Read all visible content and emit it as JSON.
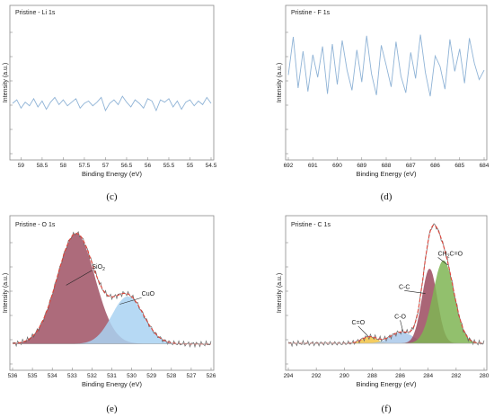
{
  "chart_data": [
    {
      "type": "line",
      "panel_label": "Pristine - Li 1s",
      "subfigure_label": "(c)",
      "xlabel": "Binding Energy (eV)",
      "ylabel": "Intensity (a.u.)",
      "xlim": [
        59.2,
        54.5
      ],
      "x_reversed": true,
      "ylim": [
        0,
        10
      ],
      "x_ticks": [
        "59",
        "58.5",
        "58",
        "57.5",
        "57",
        "56.5",
        "56",
        "55.5",
        "55",
        "54.5"
      ],
      "x_tick_values": [
        59,
        58.5,
        58,
        57.5,
        57,
        56.5,
        56,
        55.5,
        55,
        54.5
      ],
      "series": [
        {
          "color": "#8fb3d6",
          "x": [
            59.2,
            59.1,
            59.0,
            58.9,
            58.8,
            58.7,
            58.6,
            58.5,
            58.4,
            58.3,
            58.2,
            58.1,
            58.0,
            57.9,
            57.8,
            57.7,
            57.6,
            57.5,
            57.4,
            57.3,
            57.2,
            57.1,
            57.0,
            56.9,
            56.8,
            56.7,
            56.6,
            56.5,
            56.4,
            56.3,
            56.2,
            56.1,
            56.0,
            55.9,
            55.8,
            55.7,
            55.6,
            55.5,
            55.4,
            55.3,
            55.2,
            55.1,
            55.0,
            54.9,
            54.8,
            54.7,
            54.6,
            54.5
          ],
          "y": [
            2.8,
            3.1,
            2.4,
            2.9,
            2.6,
            3.2,
            2.5,
            3.0,
            2.3,
            2.9,
            3.3,
            2.7,
            3.1,
            2.6,
            2.9,
            3.2,
            2.4,
            2.8,
            3.0,
            2.6,
            2.9,
            3.3,
            2.2,
            2.8,
            3.1,
            2.7,
            3.4,
            2.9,
            2.5,
            3.1,
            2.8,
            2.4,
            3.2,
            3.0,
            2.2,
            3.1,
            2.9,
            3.2,
            2.5,
            3.0,
            2.3,
            2.9,
            3.1,
            2.6,
            3.0,
            2.7,
            3.3,
            2.8
          ]
        }
      ]
    },
    {
      "type": "line",
      "panel_label": "Pristine - F 1s",
      "subfigure_label": "(d)",
      "xlabel": "Binding Energy (eV)",
      "ylabel": "Intensity (a.u.)",
      "xlim": [
        692,
        684
      ],
      "x_reversed": true,
      "ylim": [
        0,
        10
      ],
      "x_ticks": [
        "692",
        "691",
        "690",
        "689",
        "688",
        "687",
        "686",
        "685",
        "684"
      ],
      "x_tick_values": [
        692,
        691,
        690,
        689,
        688,
        687,
        686,
        685,
        684
      ],
      "series": [
        {
          "color": "#8fb3d6",
          "x": [
            692.0,
            691.8,
            691.6,
            691.4,
            691.2,
            691.0,
            690.8,
            690.6,
            690.4,
            690.2,
            690.0,
            689.8,
            689.6,
            689.4,
            689.2,
            689.0,
            688.8,
            688.6,
            688.4,
            688.2,
            688.0,
            687.8,
            687.6,
            687.4,
            687.2,
            687.0,
            686.8,
            686.6,
            686.4,
            686.2,
            686.0,
            685.8,
            685.6,
            685.4,
            685.2,
            685.0,
            684.8,
            684.6,
            684.4,
            684.2,
            684.0
          ],
          "y": [
            5.2,
            8.4,
            4.1,
            7.2,
            3.8,
            6.9,
            5.0,
            7.6,
            3.6,
            7.8,
            4.4,
            8.1,
            5.6,
            3.9,
            7.3,
            4.6,
            8.5,
            5.3,
            3.5,
            7.7,
            6.0,
            4.2,
            8.0,
            5.1,
            3.7,
            7.1,
            4.9,
            8.6,
            5.4,
            3.4,
            6.8,
            5.9,
            4.0,
            8.2,
            5.5,
            7.4,
            4.5,
            8.3,
            6.2,
            4.8,
            5.6
          ]
        }
      ]
    },
    {
      "type": "area",
      "panel_label": "Pristine - O 1s",
      "subfigure_label": "(e)",
      "xlabel": "Binding Energy (eV)",
      "ylabel": "Intensity (a.u.)",
      "xlim": [
        536,
        526
      ],
      "x_reversed": true,
      "ylim": [
        0,
        10
      ],
      "x_ticks": [
        "536",
        "535",
        "534",
        "533",
        "532",
        "531",
        "530",
        "529",
        "528",
        "527",
        "526"
      ],
      "x_tick_values": [
        536,
        535,
        534,
        533,
        532,
        531,
        530,
        529,
        528,
        527,
        526
      ],
      "peaks": [
        {
          "name": "SiO",
          "name_subscript": "2",
          "center": 532.8,
          "amplitude": 9.3,
          "sigma": 0.95,
          "fill": "#9b4a5e",
          "fill_opacity": 0.82
        },
        {
          "name": "CuO",
          "center": 530.2,
          "amplitude": 4.0,
          "sigma": 0.8,
          "fill": "#a9d2f2",
          "fill_opacity": 0.85
        }
      ],
      "background": 0.25,
      "envelope_style": {
        "color": "#e0443a",
        "dashed": true
      },
      "raw_style": {
        "color": "#666666"
      }
    },
    {
      "type": "area",
      "panel_label": "Pristine - C 1s",
      "subfigure_label": "(f)",
      "xlabel": "Binding Energy (eV)",
      "ylabel": "Intensity (a.u.)",
      "xlim": [
        294,
        280
      ],
      "x_reversed": true,
      "ylim": [
        0,
        10
      ],
      "x_ticks": [
        "294",
        "292",
        "290",
        "288",
        "286",
        "284",
        "282",
        "280"
      ],
      "x_tick_values": [
        294,
        292,
        290,
        288,
        286,
        284,
        282,
        280
      ],
      "peaks": [
        {
          "name": "C=O",
          "center": 288.2,
          "amplitude": 0.55,
          "sigma": 0.55,
          "fill": "#f3c74e",
          "fill_opacity": 0.9
        },
        {
          "name": "C-O",
          "center": 285.9,
          "amplitude": 0.95,
          "sigma": 0.8,
          "fill": "#a9c8ea",
          "fill_opacity": 0.85
        },
        {
          "name": "C-C",
          "center": 283.9,
          "amplitude": 6.3,
          "sigma": 0.55,
          "fill": "#9b4a5e",
          "fill_opacity": 0.85
        },
        {
          "name": "CH2C=O",
          "label_parts": [
            "CH",
            "2",
            "C=O"
          ],
          "center": 282.9,
          "amplitude": 7.0,
          "sigma": 0.75,
          "fill": "#7fb554",
          "fill_opacity": 0.85
        }
      ],
      "background": 0.3,
      "envelope_style": {
        "color": "#e0443a",
        "dashed": true
      },
      "raw_style": {
        "color": "#666666"
      }
    }
  ]
}
